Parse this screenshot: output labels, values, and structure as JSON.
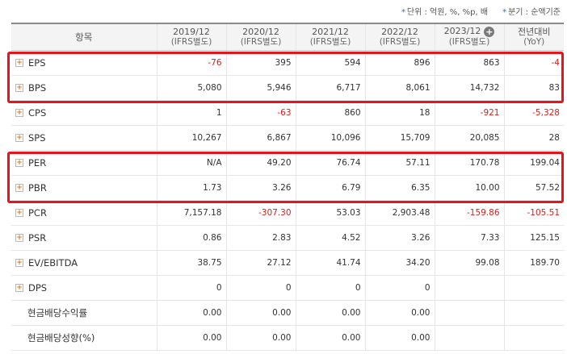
{
  "units_note": {
    "unit": "단위 : 억원, %, %p, 배",
    "period": "분기 : 순액기준"
  },
  "header": {
    "item_label": "항목",
    "columns": [
      {
        "period": "2019/12",
        "basis": "(IFRS별도)"
      },
      {
        "period": "2020/12",
        "basis": "(IFRS별도)"
      },
      {
        "period": "2021/12",
        "basis": "(IFRS별도)"
      },
      {
        "period": "2022/12",
        "basis": "(IFRS별도)"
      },
      {
        "period": "2023/12",
        "basis": "(IFRS별도)",
        "has_plus": true
      },
      {
        "period": "전년대비",
        "basis": "(YoY)"
      }
    ]
  },
  "rows": [
    {
      "label": "EPS",
      "expandable": true,
      "values": [
        "-76",
        "395",
        "594",
        "896",
        "863",
        "-4"
      ]
    },
    {
      "label": "BPS",
      "expandable": true,
      "values": [
        "5,080",
        "5,946",
        "6,717",
        "8,061",
        "14,732",
        "83"
      ]
    },
    {
      "label": "CPS",
      "expandable": true,
      "values": [
        "1",
        "-63",
        "860",
        "18",
        "-921",
        "-5,328"
      ]
    },
    {
      "label": "SPS",
      "expandable": true,
      "values": [
        "10,267",
        "6,867",
        "10,096",
        "15,709",
        "20,085",
        "28"
      ]
    },
    {
      "label": "PER",
      "expandable": true,
      "values": [
        "N/A",
        "49.20",
        "76.74",
        "57.11",
        "170.78",
        "199.04"
      ]
    },
    {
      "label": "PBR",
      "expandable": true,
      "values": [
        "1.73",
        "3.26",
        "6.79",
        "6.35",
        "10.00",
        "57.52"
      ]
    },
    {
      "label": "PCR",
      "expandable": true,
      "values": [
        "7,157.18",
        "-307.30",
        "53.03",
        "2,903.48",
        "-159.86",
        "-105.51"
      ]
    },
    {
      "label": "PSR",
      "expandable": true,
      "values": [
        "0.86",
        "2.83",
        "4.52",
        "3.26",
        "7.33",
        "125.15"
      ]
    },
    {
      "label": "EV/EBITDA",
      "expandable": true,
      "values": [
        "38.75",
        "27.12",
        "41.74",
        "34.20",
        "99.08",
        "189.70"
      ]
    },
    {
      "label": "DPS",
      "expandable": true,
      "values": [
        "0",
        "0",
        "0",
        "0",
        "",
        ""
      ]
    },
    {
      "label": "현금배당수익률",
      "expandable": false,
      "values": [
        "0.00",
        "0.00",
        "0.00",
        "0.00",
        "",
        ""
      ]
    },
    {
      "label": "현금배당성향(%)",
      "expandable": false,
      "values": [
        "0.00",
        "0.00",
        "0.00",
        "0.00",
        "",
        ""
      ]
    }
  ],
  "colors": {
    "negative": "#d6201e",
    "highlight_border": "#e8141b",
    "header_bg": "#f4f4f4",
    "expand_plus": "#e0761c"
  },
  "icons": {
    "expand": "plus-square-icon",
    "add_period": "plus-circle-icon",
    "note_bullet": "star-icon"
  }
}
